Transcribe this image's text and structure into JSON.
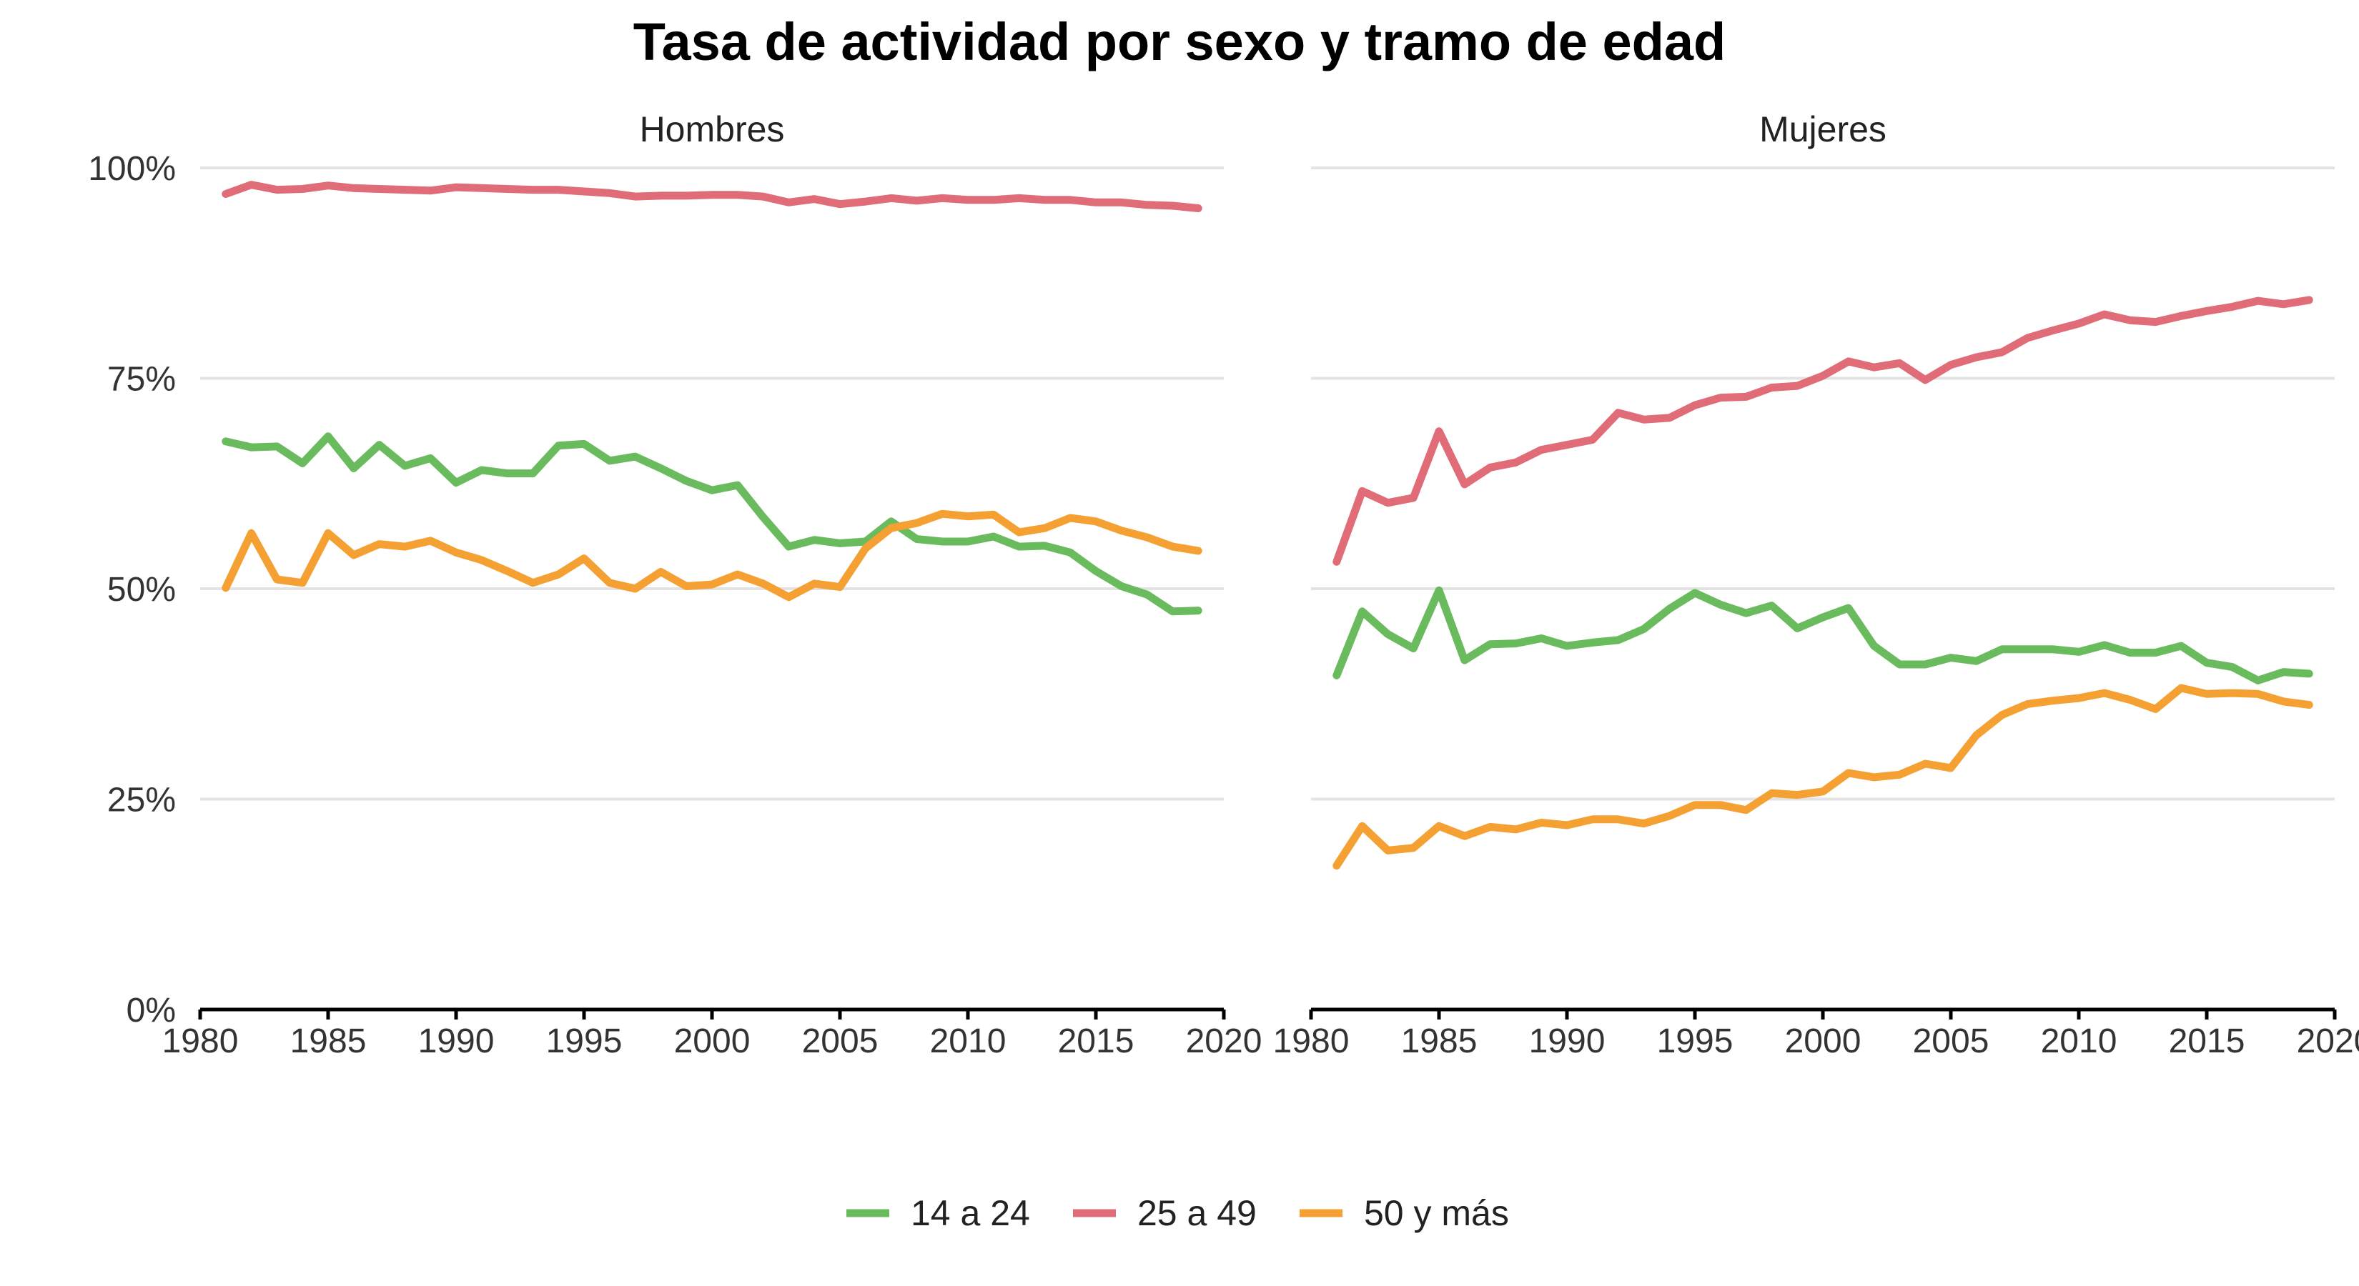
{
  "chart_data": {
    "type": "line",
    "title": "Tasa de actividad por sexo y tramo de edad",
    "xlabel": "",
    "ylabel": "",
    "xlim": [
      1980,
      2020
    ],
    "ylim": [
      0,
      1
    ],
    "x_ticks": [
      1980,
      1985,
      1990,
      1995,
      2000,
      2005,
      2010,
      2015,
      2020
    ],
    "x_tick_labels": [
      "1980",
      "1985",
      "1990",
      "1995",
      "2000",
      "2005",
      "2010",
      "2015",
      "2020"
    ],
    "y_ticks": [
      0,
      0.25,
      0.5,
      0.75,
      1.0
    ],
    "y_tick_labels": [
      "0%",
      "25%",
      "50%",
      "75%",
      "100%"
    ],
    "grid": true,
    "legend_position": "bottom",
    "legend": [
      {
        "name": "14 a 24",
        "color": "#6abb5d"
      },
      {
        "name": "25 a 49",
        "color": "#e06c78"
      },
      {
        "name": "50 y más",
        "color": "#f5a032"
      }
    ],
    "x": [
      1981,
      1982,
      1983,
      1984,
      1985,
      1986,
      1987,
      1988,
      1989,
      1990,
      1991,
      1992,
      1993,
      1994,
      1995,
      1996,
      1997,
      1998,
      1999,
      2000,
      2001,
      2002,
      2003,
      2004,
      2005,
      2006,
      2007,
      2008,
      2009,
      2010,
      2011,
      2012,
      2013,
      2014,
      2015,
      2016,
      2017,
      2018,
      2019
    ],
    "panels": [
      {
        "name": "Hombres",
        "series": [
          {
            "name": "14 a 24",
            "color": "#6abb5d",
            "values": [
              0.675,
              0.668,
              0.669,
              0.649,
              0.681,
              0.643,
              0.671,
              0.646,
              0.655,
              0.626,
              0.641,
              0.637,
              0.637,
              0.67,
              0.672,
              0.652,
              0.657,
              0.643,
              0.628,
              0.617,
              0.623,
              0.585,
              0.55,
              0.558,
              0.554,
              0.556,
              0.58,
              0.559,
              0.556,
              0.556,
              0.562,
              0.55,
              0.551,
              0.543,
              0.521,
              0.503,
              0.493,
              0.473,
              0.474
            ]
          },
          {
            "name": "25 a 49",
            "color": "#e06c78",
            "values": [
              0.969,
              0.98,
              0.974,
              0.975,
              0.979,
              0.976,
              0.975,
              0.974,
              0.973,
              0.977,
              0.976,
              0.975,
              0.974,
              0.974,
              0.972,
              0.97,
              0.966,
              0.967,
              0.967,
              0.968,
              0.968,
              0.966,
              0.959,
              0.963,
              0.957,
              0.96,
              0.964,
              0.961,
              0.964,
              0.962,
              0.962,
              0.964,
              0.962,
              0.962,
              0.959,
              0.959,
              0.956,
              0.955,
              0.952
            ]
          },
          {
            "name": "50 y más",
            "color": "#f5a032",
            "values": [
              0.501,
              0.566,
              0.511,
              0.507,
              0.566,
              0.54,
              0.553,
              0.55,
              0.557,
              0.543,
              0.534,
              0.521,
              0.507,
              0.517,
              0.536,
              0.507,
              0.5,
              0.52,
              0.503,
              0.505,
              0.517,
              0.506,
              0.49,
              0.506,
              0.502,
              0.548,
              0.572,
              0.578,
              0.589,
              0.586,
              0.588,
              0.567,
              0.572,
              0.584,
              0.58,
              0.569,
              0.561,
              0.55,
              0.545
            ]
          }
        ]
      },
      {
        "name": "Mujeres",
        "series": [
          {
            "name": "14 a 24",
            "color": "#6abb5d",
            "values": [
              0.397,
              0.473,
              0.446,
              0.429,
              0.498,
              0.415,
              0.434,
              0.435,
              0.441,
              0.432,
              0.436,
              0.439,
              0.452,
              0.476,
              0.495,
              0.481,
              0.471,
              0.48,
              0.453,
              0.466,
              0.477,
              0.432,
              0.41,
              0.41,
              0.418,
              0.414,
              0.428,
              0.428,
              0.428,
              0.425,
              0.433,
              0.424,
              0.424,
              0.432,
              0.412,
              0.407,
              0.391,
              0.401,
              0.399
            ]
          },
          {
            "name": "25 a 49",
            "color": "#e06c78",
            "values": [
              0.532,
              0.616,
              0.602,
              0.608,
              0.687,
              0.624,
              0.644,
              0.65,
              0.665,
              0.671,
              0.677,
              0.709,
              0.701,
              0.703,
              0.718,
              0.727,
              0.728,
              0.739,
              0.741,
              0.753,
              0.77,
              0.763,
              0.768,
              0.748,
              0.766,
              0.775,
              0.781,
              0.798,
              0.807,
              0.815,
              0.826,
              0.819,
              0.817,
              0.824,
              0.83,
              0.835,
              0.842,
              0.838,
              0.843
            ]
          },
          {
            "name": "50 y más",
            "color": "#f5a032",
            "values": [
              0.171,
              0.218,
              0.189,
              0.192,
              0.218,
              0.206,
              0.217,
              0.214,
              0.222,
              0.219,
              0.226,
              0.226,
              0.221,
              0.23,
              0.243,
              0.243,
              0.237,
              0.257,
              0.255,
              0.259,
              0.281,
              0.276,
              0.279,
              0.292,
              0.287,
              0.326,
              0.35,
              0.363,
              0.367,
              0.37,
              0.376,
              0.368,
              0.357,
              0.382,
              0.375,
              0.376,
              0.375,
              0.366,
              0.362
            ]
          }
        ]
      }
    ]
  }
}
